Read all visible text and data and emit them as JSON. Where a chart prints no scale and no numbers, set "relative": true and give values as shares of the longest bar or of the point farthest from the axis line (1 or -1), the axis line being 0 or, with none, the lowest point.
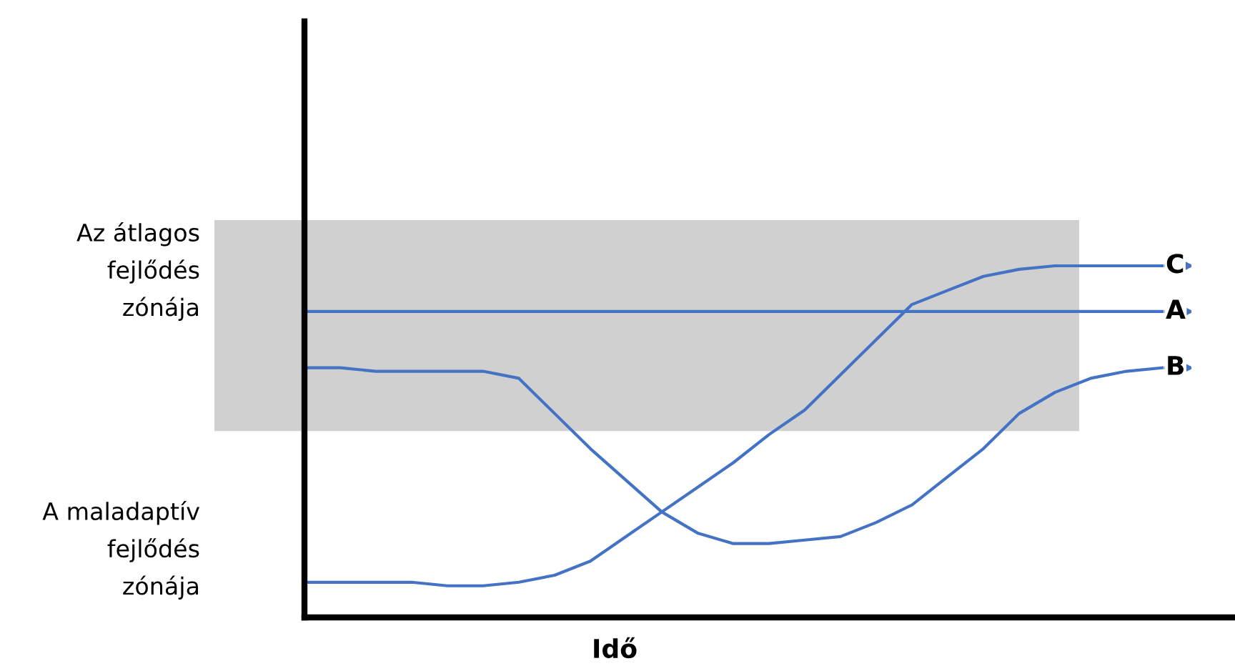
{
  "chart_data": {
    "type": "line",
    "relative": true,
    "xlabel": "Idő",
    "legend": "right",
    "marker": "none",
    "line_style": "solid",
    "categories": [
      null,
      null,
      null,
      null,
      null,
      null,
      null,
      null,
      null,
      null,
      null,
      null,
      null,
      null,
      null,
      null,
      null,
      null,
      null,
      null,
      null,
      null,
      null,
      null,
      null
    ],
    "series": [
      {
        "name": "C",
        "color": "#4472c4",
        "values": [
          0.1,
          0.1,
          0.1,
          0.1,
          0.09,
          0.09,
          0.1,
          0.12,
          0.16,
          0.23,
          0.3,
          0.37,
          0.44,
          0.52,
          0.59,
          0.69,
          0.79,
          0.89,
          0.93,
          0.97,
          0.99,
          1,
          1,
          1,
          1
        ]
      },
      {
        "name": "A",
        "color": "#4472c4",
        "values": [
          0.87,
          0.87,
          0.87,
          0.87,
          0.87,
          0.87,
          0.87,
          0.87,
          0.87,
          0.87,
          0.87,
          0.87,
          0.87,
          0.87,
          0.87,
          0.87,
          0.87,
          0.87,
          0.87,
          0.87,
          0.87,
          0.87,
          0.87,
          0.87,
          0.87
        ]
      },
      {
        "name": "B",
        "color": "#4472c4",
        "values": [
          0.71,
          0.71,
          0.7,
          0.7,
          0.7,
          0.7,
          0.68,
          0.58,
          0.48,
          0.39,
          0.3,
          0.24,
          0.21,
          0.21,
          0.22,
          0.23,
          0.27,
          0.32,
          0.4,
          0.48,
          0.58,
          0.64,
          0.68,
          0.7,
          0.71
        ]
      }
    ],
    "bands": [
      {
        "axis": "y",
        "from": 0.53,
        "to": 1.13,
        "color": "#d0d0d0"
      }
    ],
    "annotations": [
      "Az átlagos\nfejlődés\nzónája",
      "A maladaptív\nfejlődés\nzónája"
    ]
  }
}
